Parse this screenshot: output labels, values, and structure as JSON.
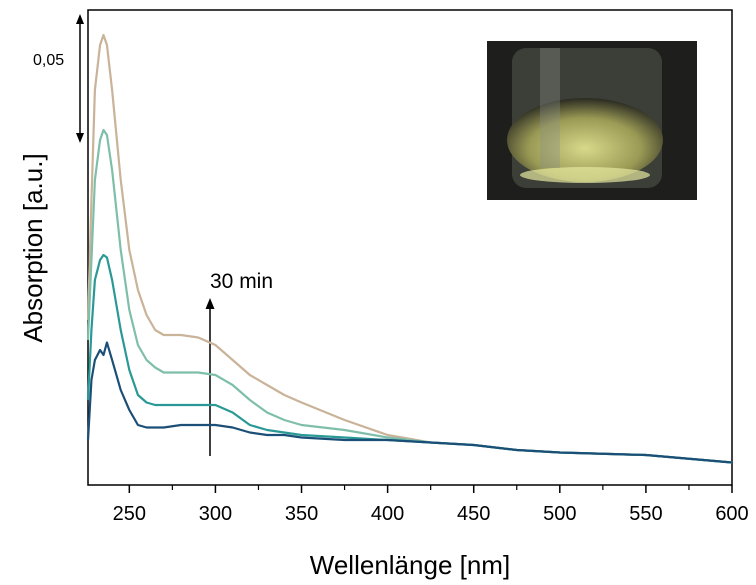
{
  "chart_data": {
    "type": "line",
    "x_label": "Wellenlänge [nm]",
    "y_label": "Absorption [a.u.]",
    "x": [
      226,
      228,
      230,
      233,
      235,
      237,
      240,
      245,
      250,
      255,
      260,
      265,
      270,
      280,
      290,
      300,
      310,
      320,
      330,
      340,
      350,
      375,
      400,
      425,
      450,
      475,
      500,
      550,
      600
    ],
    "series": [
      {
        "color": "#c9b399",
        "values": [
          0.066,
          0.114,
          0.158,
          0.176,
          0.18,
          0.176,
          0.158,
          0.122,
          0.094,
          0.078,
          0.068,
          0.062,
          0.06,
          0.06,
          0.059,
          0.056,
          0.05,
          0.044,
          0.04,
          0.036,
          0.033,
          0.026,
          0.02,
          0.017,
          0.016,
          0.014,
          0.013,
          0.012,
          0.009
        ]
      },
      {
        "color": "#7fbfa9",
        "values": [
          0.058,
          0.09,
          0.122,
          0.138,
          0.142,
          0.14,
          0.126,
          0.094,
          0.07,
          0.056,
          0.05,
          0.047,
          0.045,
          0.045,
          0.045,
          0.044,
          0.04,
          0.034,
          0.029,
          0.026,
          0.024,
          0.022,
          0.019,
          0.017,
          0.016,
          0.014,
          0.013,
          0.012,
          0.009
        ]
      },
      {
        "color": "#2a9995",
        "values": [
          0.034,
          0.062,
          0.082,
          0.09,
          0.092,
          0.091,
          0.082,
          0.062,
          0.046,
          0.036,
          0.033,
          0.032,
          0.032,
          0.032,
          0.032,
          0.032,
          0.029,
          0.024,
          0.022,
          0.021,
          0.02,
          0.019,
          0.018,
          0.017,
          0.016,
          0.014,
          0.013,
          0.012,
          0.009
        ]
      },
      {
        "color": "#1b4f77",
        "values": [
          0.018,
          0.042,
          0.05,
          0.054,
          0.052,
          0.057,
          0.05,
          0.038,
          0.03,
          0.024,
          0.023,
          0.023,
          0.023,
          0.024,
          0.024,
          0.024,
          0.023,
          0.021,
          0.02,
          0.02,
          0.019,
          0.018,
          0.018,
          0.017,
          0.016,
          0.014,
          0.013,
          0.012,
          0.009
        ]
      }
    ],
    "xlim": [
      226,
      600
    ],
    "xticks": [
      250,
      300,
      350,
      400,
      450,
      500,
      550,
      600
    ],
    "xminorticks": [
      275,
      325,
      375,
      425,
      475,
      525,
      575
    ],
    "ylim": [
      0,
      0.19
    ],
    "scale_bar": {
      "value": 0.05,
      "label": "0,05"
    },
    "annotation": "30 min"
  }
}
